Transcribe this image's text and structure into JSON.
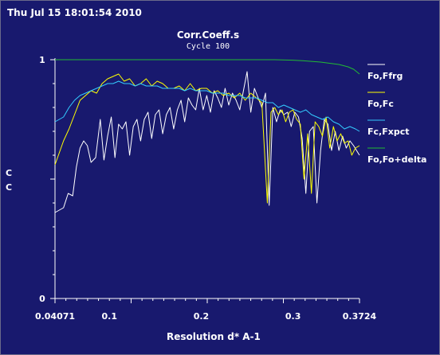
{
  "header": {
    "timestamp": "Thu Jul 15 18:01:54 2010"
  },
  "chart_data": {
    "type": "line",
    "title": "Corr.Coeff.s",
    "subtitle": "Cycle 100",
    "xlabel": "Resolution d* A-1",
    "ylabel": "C\nC",
    "x_tick_labels": [
      "0.04071",
      "0.1",
      "0.2",
      "0.3",
      "0.3724"
    ],
    "x_ticks": [
      0.04071,
      0.1,
      0.2,
      0.3,
      0.3724
    ],
    "y_tick_labels": [
      "0",
      "1"
    ],
    "xlim": [
      0.04071,
      0.3724
    ],
    "ylim": [
      0,
      1
    ],
    "grid": false,
    "legend_position": "right",
    "series": [
      {
        "name": "Fo,Ffrg",
        "color": "#ffffff",
        "x": [
          0.0407,
          0.05,
          0.055,
          0.06,
          0.064,
          0.068,
          0.072,
          0.076,
          0.08,
          0.085,
          0.09,
          0.094,
          0.098,
          0.102,
          0.106,
          0.11,
          0.114,
          0.118,
          0.122,
          0.126,
          0.13,
          0.134,
          0.138,
          0.142,
          0.146,
          0.15,
          0.154,
          0.158,
          0.162,
          0.166,
          0.17,
          0.174,
          0.178,
          0.182,
          0.186,
          0.19,
          0.194,
          0.198,
          0.202,
          0.206,
          0.21,
          0.214,
          0.218,
          0.222,
          0.226,
          0.23,
          0.234,
          0.238,
          0.242,
          0.246,
          0.25,
          0.254,
          0.258,
          0.262,
          0.266,
          0.27,
          0.274,
          0.278,
          0.282,
          0.286,
          0.29,
          0.294,
          0.298,
          0.302,
          0.306,
          0.31,
          0.314,
          0.318,
          0.322,
          0.326,
          0.33,
          0.334,
          0.338,
          0.342,
          0.346,
          0.35,
          0.354,
          0.358,
          0.362,
          0.366,
          0.3724
        ],
        "y": [
          0.36,
          0.38,
          0.44,
          0.43,
          0.55,
          0.63,
          0.66,
          0.64,
          0.57,
          0.59,
          0.75,
          0.58,
          0.68,
          0.76,
          0.59,
          0.73,
          0.71,
          0.74,
          0.6,
          0.72,
          0.75,
          0.66,
          0.75,
          0.78,
          0.67,
          0.77,
          0.79,
          0.69,
          0.77,
          0.8,
          0.71,
          0.79,
          0.83,
          0.74,
          0.84,
          0.81,
          0.79,
          0.88,
          0.79,
          0.85,
          0.78,
          0.87,
          0.84,
          0.8,
          0.88,
          0.81,
          0.86,
          0.83,
          0.79,
          0.87,
          0.95,
          0.78,
          0.88,
          0.84,
          0.8,
          0.86,
          0.39,
          0.8,
          0.74,
          0.79,
          0.77,
          0.78,
          0.72,
          0.78,
          0.76,
          0.67,
          0.44,
          0.7,
          0.72,
          0.4,
          0.62,
          0.75,
          0.73,
          0.62,
          0.7,
          0.62,
          0.68,
          0.63,
          0.66,
          0.64,
          0.6
        ]
      },
      {
        "name": "Fo,Fc",
        "color": "#ffff00",
        "x": [
          0.0407,
          0.05,
          0.056,
          0.062,
          0.068,
          0.074,
          0.08,
          0.086,
          0.092,
          0.098,
          0.104,
          0.11,
          0.116,
          0.122,
          0.128,
          0.134,
          0.14,
          0.146,
          0.152,
          0.158,
          0.164,
          0.17,
          0.176,
          0.182,
          0.188,
          0.194,
          0.2,
          0.206,
          0.212,
          0.218,
          0.224,
          0.23,
          0.236,
          0.242,
          0.248,
          0.254,
          0.26,
          0.266,
          0.272,
          0.276,
          0.28,
          0.284,
          0.288,
          0.292,
          0.296,
          0.3,
          0.304,
          0.308,
          0.312,
          0.316,
          0.32,
          0.324,
          0.328,
          0.332,
          0.336,
          0.34,
          0.344,
          0.348,
          0.352,
          0.356,
          0.36,
          0.364,
          0.368,
          0.3724
        ],
        "y": [
          0.56,
          0.66,
          0.71,
          0.77,
          0.83,
          0.85,
          0.87,
          0.86,
          0.9,
          0.92,
          0.93,
          0.94,
          0.91,
          0.92,
          0.89,
          0.9,
          0.92,
          0.89,
          0.91,
          0.9,
          0.88,
          0.88,
          0.89,
          0.87,
          0.9,
          0.87,
          0.88,
          0.88,
          0.86,
          0.87,
          0.85,
          0.86,
          0.84,
          0.86,
          0.83,
          0.86,
          0.84,
          0.82,
          0.4,
          0.78,
          0.8,
          0.77,
          0.79,
          0.74,
          0.78,
          0.79,
          0.75,
          0.73,
          0.5,
          0.69,
          0.44,
          0.74,
          0.72,
          0.68,
          0.76,
          0.63,
          0.72,
          0.66,
          0.69,
          0.65,
          0.66,
          0.6,
          0.63,
          0.64
        ]
      },
      {
        "name": "Fc,Fxpct",
        "color": "#33ccff",
        "x": [
          0.0407,
          0.05,
          0.056,
          0.062,
          0.068,
          0.074,
          0.08,
          0.086,
          0.092,
          0.098,
          0.104,
          0.11,
          0.116,
          0.122,
          0.128,
          0.134,
          0.14,
          0.146,
          0.152,
          0.158,
          0.164,
          0.17,
          0.176,
          0.182,
          0.188,
          0.194,
          0.2,
          0.206,
          0.212,
          0.218,
          0.224,
          0.23,
          0.236,
          0.242,
          0.248,
          0.254,
          0.26,
          0.266,
          0.272,
          0.278,
          0.284,
          0.29,
          0.296,
          0.302,
          0.308,
          0.314,
          0.32,
          0.326,
          0.332,
          0.338,
          0.344,
          0.35,
          0.356,
          0.362,
          0.368,
          0.3724
        ],
        "y": [
          0.74,
          0.76,
          0.8,
          0.83,
          0.85,
          0.86,
          0.87,
          0.88,
          0.89,
          0.9,
          0.9,
          0.91,
          0.9,
          0.9,
          0.89,
          0.9,
          0.89,
          0.89,
          0.89,
          0.88,
          0.88,
          0.88,
          0.88,
          0.87,
          0.88,
          0.87,
          0.87,
          0.87,
          0.86,
          0.86,
          0.86,
          0.85,
          0.85,
          0.85,
          0.84,
          0.84,
          0.84,
          0.83,
          0.82,
          0.82,
          0.8,
          0.81,
          0.8,
          0.79,
          0.78,
          0.79,
          0.77,
          0.76,
          0.75,
          0.76,
          0.74,
          0.73,
          0.71,
          0.72,
          0.71,
          0.7
        ]
      },
      {
        "name": "Fo,Fo+delta",
        "color": "#22bb33",
        "x": [
          0.0407,
          0.08,
          0.12,
          0.16,
          0.2,
          0.24,
          0.28,
          0.3,
          0.31,
          0.32,
          0.33,
          0.34,
          0.35,
          0.36,
          0.366,
          0.3724
        ],
        "y": [
          1.0,
          1.0,
          1.0,
          1.0,
          1.0,
          1.0,
          1.0,
          0.998,
          0.996,
          0.993,
          0.99,
          0.985,
          0.98,
          0.97,
          0.96,
          0.94
        ]
      }
    ]
  }
}
